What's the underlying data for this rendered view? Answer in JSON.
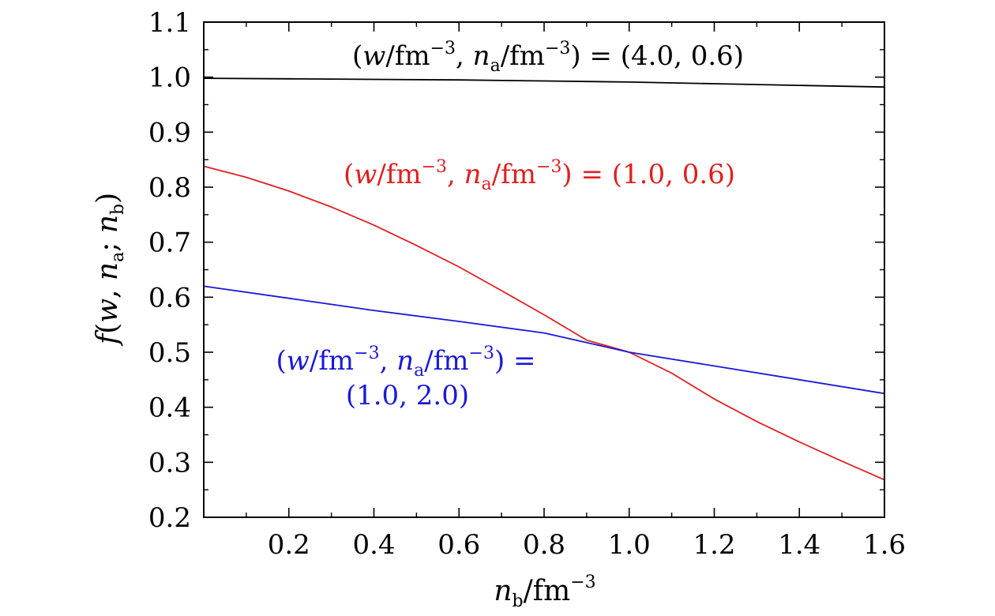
{
  "chart_data": {
    "type": "line",
    "xlabel": {
      "var": "n",
      "var_sub": "b",
      "unit": "/fm",
      "unit_sup": "−3"
    },
    "ylabel": {
      "prefix": "f",
      "open": "(",
      "w": "w",
      "comma": ", ",
      "na": "n",
      "na_sub": "a",
      "semicolon": "; ",
      "nb": "n",
      "nb_sub": "b",
      "close": ")"
    },
    "xlim": [
      0.0,
      1.6
    ],
    "ylim": [
      0.2,
      1.1
    ],
    "x_ticks": [
      "0.2",
      "0.4",
      "0.6",
      "0.8",
      "1.0",
      "1.2",
      "1.4",
      "1.6"
    ],
    "y_ticks": [
      "0.2",
      "0.3",
      "0.4",
      "0.5",
      "0.6",
      "0.7",
      "0.8",
      "0.9",
      "1.0",
      "1.1"
    ],
    "series": [
      {
        "color": "#000000",
        "x": [
          0.0,
          0.2,
          0.4,
          0.6,
          0.8,
          1.0,
          1.2,
          1.4,
          1.6
        ],
        "y": [
          0.998,
          0.997,
          0.996,
          0.995,
          0.993,
          0.991,
          0.988,
          0.985,
          0.982
        ]
      },
      {
        "color": "#e02020",
        "x": [
          0.0,
          0.1,
          0.2,
          0.3,
          0.4,
          0.5,
          0.6,
          0.7,
          0.8,
          0.9,
          1.0,
          1.1,
          1.2,
          1.3,
          1.4,
          1.5,
          1.6
        ],
        "y": [
          0.838,
          0.818,
          0.793,
          0.764,
          0.731,
          0.694,
          0.655,
          0.612,
          0.568,
          0.522,
          0.5,
          0.462,
          0.415,
          0.374,
          0.337,
          0.302,
          0.268
        ]
      },
      {
        "color": "#1a1ad6",
        "x": [
          0.0,
          0.2,
          0.4,
          0.6,
          0.8,
          1.0,
          1.2,
          1.4,
          1.6
        ],
        "y": [
          0.62,
          0.598,
          0.576,
          0.556,
          0.535,
          0.5,
          0.475,
          0.45,
          0.425
        ]
      }
    ],
    "annotations": {
      "black": {
        "color": "#000000",
        "lines": [
          {
            "parts": [
              {
                "t": "(",
                "s": ""
              },
              {
                "t": "w",
                "s": "it"
              },
              {
                "t": "/fm",
                "s": ""
              },
              {
                "t": "−3",
                "s": "sup"
              },
              {
                "t": ", ",
                "s": ""
              },
              {
                "t": "n",
                "s": "it"
              },
              {
                "t": "a",
                "s": "sub"
              },
              {
                "t": "/fm",
                "s": ""
              },
              {
                "t": "−3",
                "s": "sup"
              },
              {
                "t": ") = (4.0, 0.6)",
                "s": ""
              }
            ]
          }
        ]
      },
      "red": {
        "color": "#e02020",
        "lines": [
          {
            "parts": [
              {
                "t": "(",
                "s": ""
              },
              {
                "t": "w",
                "s": "it"
              },
              {
                "t": "/fm",
                "s": ""
              },
              {
                "t": "−3",
                "s": "sup"
              },
              {
                "t": ", ",
                "s": ""
              },
              {
                "t": "n",
                "s": "it"
              },
              {
                "t": "a",
                "s": "sub"
              },
              {
                "t": "/fm",
                "s": ""
              },
              {
                "t": "−3",
                "s": "sup"
              },
              {
                "t": ") = (1.0, 0.6)",
                "s": ""
              }
            ]
          }
        ]
      },
      "blue": {
        "color": "#1a1ad6",
        "lines": [
          {
            "parts": [
              {
                "t": "(",
                "s": ""
              },
              {
                "t": "w",
                "s": "it"
              },
              {
                "t": "/fm",
                "s": ""
              },
              {
                "t": "−3",
                "s": "sup"
              },
              {
                "t": ", ",
                "s": ""
              },
              {
                "t": "n",
                "s": "it"
              },
              {
                "t": "a",
                "s": "sub"
              },
              {
                "t": "/fm",
                "s": ""
              },
              {
                "t": "−3",
                "s": "sup"
              },
              {
                "t": ") =",
                "s": ""
              }
            ]
          },
          {
            "parts": [
              {
                "t": "(1.0, 2.0)",
                "s": ""
              }
            ]
          }
        ]
      }
    }
  }
}
